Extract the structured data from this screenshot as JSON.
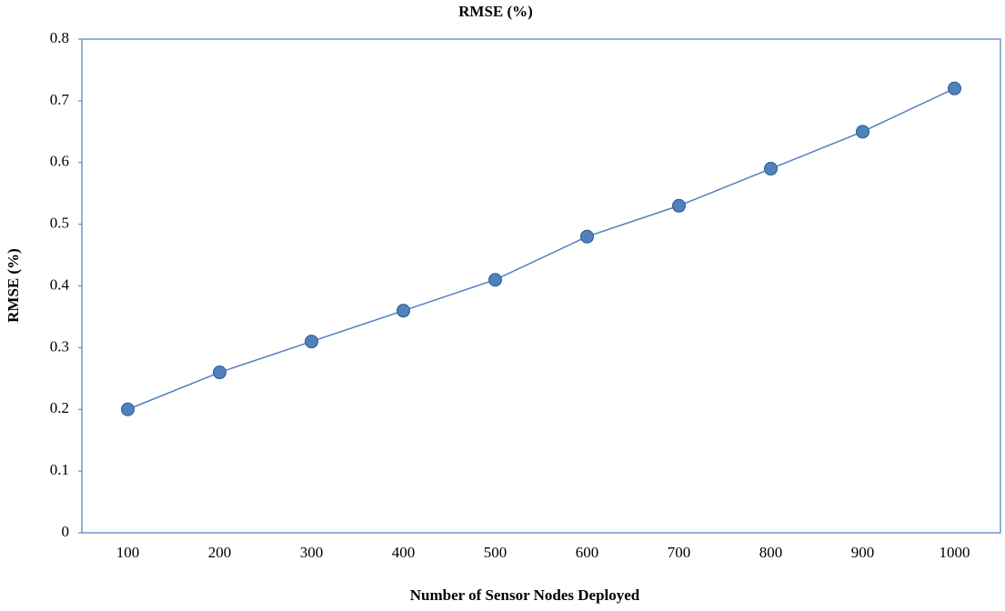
{
  "chart_data": {
    "type": "line",
    "title": "RMSE (%)",
    "x_label": "Number of Sensor Nodes Deployed",
    "y_label": "RMSE (%)",
    "categories": [
      "100",
      "200",
      "300",
      "400",
      "500",
      "600",
      "700",
      "800",
      "900",
      "1000"
    ],
    "series": [
      {
        "name": "RMSE (%)",
        "color": "#4f81bd",
        "values": [
          0.2,
          0.26,
          0.31,
          0.36,
          0.41,
          0.48,
          0.53,
          0.59,
          0.65,
          0.72
        ]
      }
    ],
    "ylim": [
      0,
      0.8
    ],
    "yticks": [
      0,
      0.1,
      0.2,
      0.3,
      0.4,
      0.5,
      0.6,
      0.7,
      0.8
    ],
    "grid": false
  }
}
